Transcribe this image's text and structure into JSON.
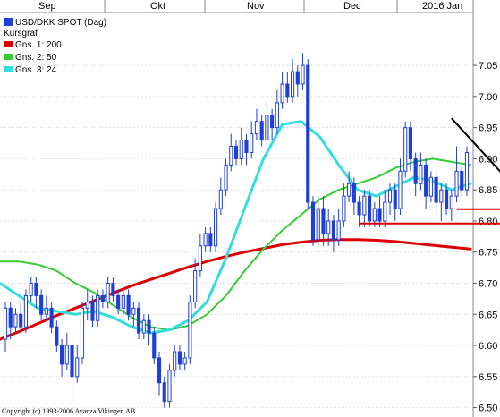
{
  "chart_data": {
    "type": "candlestick",
    "legend": {
      "placement": "top-left",
      "main": "USD/DKK SPOT (Dag)",
      "section": "Kursgraf",
      "items": [
        {
          "label": "Gns. 1: 200",
          "color": "#dd0000"
        },
        {
          "label": "Gns. 2: 50",
          "color": "#33cc33"
        },
        {
          "label": "Gns. 3: 24",
          "color": "#33dddd"
        }
      ]
    },
    "x_months": [
      "Sep",
      "Okt",
      "Nov",
      "Dec",
      "2016 Jan"
    ],
    "ylim": [
      6.485,
      7.135
    ],
    "yticks": [
      "6.50",
      "6.55",
      "6.60",
      "6.65",
      "6.70",
      "6.75",
      "6.80",
      "6.85",
      "6.90",
      "6.95",
      "7.00",
      "7.05"
    ],
    "colors": {
      "candle": "#1f3fd6",
      "trendline": "#000000",
      "support": "#dd0000",
      "grid": "#aaaaaa"
    },
    "candles": [
      {
        "o": 6.61,
        "c": 6.66,
        "h": 6.67,
        "l": 6.59
      },
      {
        "o": 6.66,
        "c": 6.63,
        "h": 6.67,
        "l": 6.61
      },
      {
        "o": 6.63,
        "c": 6.65,
        "h": 6.66,
        "l": 6.62
      },
      {
        "o": 6.65,
        "c": 6.63,
        "h": 6.67,
        "l": 6.62
      },
      {
        "o": 6.63,
        "c": 6.68,
        "h": 6.69,
        "l": 6.62
      },
      {
        "o": 6.68,
        "c": 6.7,
        "h": 6.71,
        "l": 6.67
      },
      {
        "o": 6.7,
        "c": 6.68,
        "h": 6.71,
        "l": 6.66
      },
      {
        "o": 6.68,
        "c": 6.65,
        "h": 6.69,
        "l": 6.64
      },
      {
        "o": 6.65,
        "c": 6.66,
        "h": 6.68,
        "l": 6.64
      },
      {
        "o": 6.66,
        "c": 6.63,
        "h": 6.67,
        "l": 6.62
      },
      {
        "o": 6.63,
        "c": 6.6,
        "h": 6.64,
        "l": 6.59
      },
      {
        "o": 6.6,
        "c": 6.57,
        "h": 6.61,
        "l": 6.55
      },
      {
        "o": 6.57,
        "c": 6.6,
        "h": 6.62,
        "l": 6.56
      },
      {
        "o": 6.6,
        "c": 6.55,
        "h": 6.61,
        "l": 6.51
      },
      {
        "o": 6.55,
        "c": 6.58,
        "h": 6.6,
        "l": 6.54
      },
      {
        "o": 6.58,
        "c": 6.66,
        "h": 6.67,
        "l": 6.57
      },
      {
        "o": 6.66,
        "c": 6.67,
        "h": 6.69,
        "l": 6.64
      },
      {
        "o": 6.67,
        "c": 6.64,
        "h": 6.68,
        "l": 6.63
      },
      {
        "o": 6.64,
        "c": 6.68,
        "h": 6.69,
        "l": 6.63
      },
      {
        "o": 6.68,
        "c": 6.67,
        "h": 6.69,
        "l": 6.66
      },
      {
        "o": 6.67,
        "c": 6.7,
        "h": 6.71,
        "l": 6.66
      },
      {
        "o": 6.7,
        "c": 6.68,
        "h": 6.71,
        "l": 6.67
      },
      {
        "o": 6.68,
        "c": 6.66,
        "h": 6.69,
        "l": 6.65
      },
      {
        "o": 6.66,
        "c": 6.68,
        "h": 6.69,
        "l": 6.65
      },
      {
        "o": 6.68,
        "c": 6.65,
        "h": 6.69,
        "l": 6.64
      },
      {
        "o": 6.65,
        "c": 6.66,
        "h": 6.67,
        "l": 6.63
      },
      {
        "o": 6.66,
        "c": 6.62,
        "h": 6.67,
        "l": 6.61
      },
      {
        "o": 6.62,
        "c": 6.64,
        "h": 6.65,
        "l": 6.61
      },
      {
        "o": 6.64,
        "c": 6.62,
        "h": 6.65,
        "l": 6.6
      },
      {
        "o": 6.62,
        "c": 6.58,
        "h": 6.63,
        "l": 6.57
      },
      {
        "o": 6.58,
        "c": 6.54,
        "h": 6.59,
        "l": 6.52
      },
      {
        "o": 6.54,
        "c": 6.51,
        "h": 6.55,
        "l": 6.5
      },
      {
        "o": 6.51,
        "c": 6.56,
        "h": 6.57,
        "l": 6.5
      },
      {
        "o": 6.56,
        "c": 6.59,
        "h": 6.6,
        "l": 6.55
      },
      {
        "o": 6.59,
        "c": 6.57,
        "h": 6.6,
        "l": 6.56
      },
      {
        "o": 6.57,
        "c": 6.58,
        "h": 6.59,
        "l": 6.56
      },
      {
        "o": 6.58,
        "c": 6.67,
        "h": 6.68,
        "l": 6.57
      },
      {
        "o": 6.67,
        "c": 6.72,
        "h": 6.74,
        "l": 6.66
      },
      {
        "o": 6.72,
        "c": 6.76,
        "h": 6.78,
        "l": 6.71
      },
      {
        "o": 6.76,
        "c": 6.78,
        "h": 6.79,
        "l": 6.75
      },
      {
        "o": 6.78,
        "c": 6.76,
        "h": 6.79,
        "l": 6.75
      },
      {
        "o": 6.76,
        "c": 6.82,
        "h": 6.83,
        "l": 6.75
      },
      {
        "o": 6.82,
        "c": 6.85,
        "h": 6.87,
        "l": 6.81
      },
      {
        "o": 6.85,
        "c": 6.89,
        "h": 6.9,
        "l": 6.84
      },
      {
        "o": 6.89,
        "c": 6.92,
        "h": 6.94,
        "l": 6.88
      },
      {
        "o": 6.92,
        "c": 6.9,
        "h": 6.93,
        "l": 6.89
      },
      {
        "o": 6.9,
        "c": 6.93,
        "h": 6.95,
        "l": 6.89
      },
      {
        "o": 6.93,
        "c": 6.91,
        "h": 6.94,
        "l": 6.89
      },
      {
        "o": 6.91,
        "c": 6.94,
        "h": 6.96,
        "l": 6.9
      },
      {
        "o": 6.94,
        "c": 6.96,
        "h": 6.98,
        "l": 6.93
      },
      {
        "o": 6.96,
        "c": 6.93,
        "h": 6.97,
        "l": 6.92
      },
      {
        "o": 6.93,
        "c": 6.97,
        "h": 6.99,
        "l": 6.92
      },
      {
        "o": 6.97,
        "c": 6.95,
        "h": 6.98,
        "l": 6.93
      },
      {
        "o": 6.95,
        "c": 6.99,
        "h": 7.01,
        "l": 6.94
      },
      {
        "o": 6.99,
        "c": 7.02,
        "h": 7.04,
        "l": 6.98
      },
      {
        "o": 7.02,
        "c": 7.0,
        "h": 7.04,
        "l": 6.99
      },
      {
        "o": 7.0,
        "c": 7.04,
        "h": 7.06,
        "l": 6.99
      },
      {
        "o": 7.04,
        "c": 7.02,
        "h": 7.05,
        "l": 7.0
      },
      {
        "o": 7.02,
        "c": 7.05,
        "h": 7.07,
        "l": 7.01
      },
      {
        "o": 7.05,
        "c": 6.83,
        "h": 7.06,
        "l": 6.82
      },
      {
        "o": 6.83,
        "c": 6.77,
        "h": 6.84,
        "l": 6.76
      },
      {
        "o": 6.77,
        "c": 6.82,
        "h": 6.84,
        "l": 6.76
      },
      {
        "o": 6.82,
        "c": 6.78,
        "h": 6.84,
        "l": 6.76
      },
      {
        "o": 6.78,
        "c": 6.8,
        "h": 6.82,
        "l": 6.76
      },
      {
        "o": 6.8,
        "c": 6.77,
        "h": 6.81,
        "l": 6.75
      },
      {
        "o": 6.77,
        "c": 6.8,
        "h": 6.82,
        "l": 6.76
      },
      {
        "o": 6.8,
        "c": 6.84,
        "h": 6.86,
        "l": 6.79
      },
      {
        "o": 6.84,
        "c": 6.86,
        "h": 6.88,
        "l": 6.83
      },
      {
        "o": 6.86,
        "c": 6.83,
        "h": 6.87,
        "l": 6.81
      },
      {
        "o": 6.83,
        "c": 6.81,
        "h": 6.84,
        "l": 6.79
      },
      {
        "o": 6.81,
        "c": 6.84,
        "h": 6.85,
        "l": 6.79
      },
      {
        "o": 6.84,
        "c": 6.8,
        "h": 6.85,
        "l": 6.79
      },
      {
        "o": 6.8,
        "c": 6.82,
        "h": 6.83,
        "l": 6.79
      },
      {
        "o": 6.82,
        "c": 6.8,
        "h": 6.84,
        "l": 6.79
      },
      {
        "o": 6.8,
        "c": 6.83,
        "h": 6.85,
        "l": 6.79
      },
      {
        "o": 6.83,
        "c": 6.85,
        "h": 6.86,
        "l": 6.81
      },
      {
        "o": 6.85,
        "c": 6.82,
        "h": 6.86,
        "l": 6.8
      },
      {
        "o": 6.82,
        "c": 6.88,
        "h": 6.9,
        "l": 6.81
      },
      {
        "o": 6.88,
        "c": 6.95,
        "h": 6.96,
        "l": 6.87
      },
      {
        "o": 6.95,
        "c": 6.9,
        "h": 6.96,
        "l": 6.88
      },
      {
        "o": 6.9,
        "c": 6.86,
        "h": 6.91,
        "l": 6.84
      },
      {
        "o": 6.86,
        "c": 6.89,
        "h": 6.91,
        "l": 6.85
      },
      {
        "o": 6.89,
        "c": 6.84,
        "h": 6.9,
        "l": 6.82
      },
      {
        "o": 6.84,
        "c": 6.87,
        "h": 6.88,
        "l": 6.83
      },
      {
        "o": 6.87,
        "c": 6.83,
        "h": 6.88,
        "l": 6.81
      },
      {
        "o": 6.83,
        "c": 6.85,
        "h": 6.86,
        "l": 6.8
      },
      {
        "o": 6.85,
        "c": 6.82,
        "h": 6.86,
        "l": 6.81
      },
      {
        "o": 6.82,
        "c": 6.84,
        "h": 6.85,
        "l": 6.8
      },
      {
        "o": 6.84,
        "c": 6.88,
        "h": 6.92,
        "l": 6.83
      },
      {
        "o": 6.88,
        "c": 6.85,
        "h": 6.89,
        "l": 6.84
      },
      {
        "o": 6.85,
        "c": 6.91,
        "h": 6.92,
        "l": 6.84
      }
    ],
    "ma200": [
      6.61,
      6.622,
      6.635,
      6.648,
      6.66,
      6.672,
      6.684,
      6.696,
      6.706,
      6.716,
      6.726,
      6.735,
      6.743,
      6.75,
      6.756,
      6.762,
      6.766,
      6.769,
      6.77,
      6.77,
      6.769,
      6.767,
      6.764,
      6.761,
      6.758,
      6.755
    ],
    "ma50": [
      6.735,
      6.735,
      6.73,
      6.72,
      6.7,
      6.685,
      6.665,
      6.645,
      6.63,
      6.625,
      6.632,
      6.65,
      6.68,
      6.72,
      6.755,
      6.785,
      6.81,
      6.835,
      6.85,
      6.86,
      6.87,
      6.885,
      6.895,
      6.9,
      6.895,
      6.89
    ],
    "ma24": [
      6.7,
      6.68,
      6.66,
      6.655,
      6.65,
      6.655,
      6.645,
      6.63,
      6.62,
      6.625,
      6.64,
      6.67,
      6.74,
      6.82,
      6.9,
      6.955,
      6.96,
      6.935,
      6.89,
      6.85,
      6.84,
      6.855,
      6.87,
      6.865,
      6.85,
      6.86
    ],
    "trendline": [
      {
        "i": 87,
        "v": 6.965
      },
      {
        "i": 99,
        "v": 6.857
      }
    ],
    "support_levels": [
      {
        "v": 6.819,
        "from": 88,
        "to": 101
      },
      {
        "v": 6.796,
        "from": 69,
        "to": 101
      }
    ]
  },
  "copyright": "Copyright (c) 1993-2006 Avanza Vikingen AB"
}
